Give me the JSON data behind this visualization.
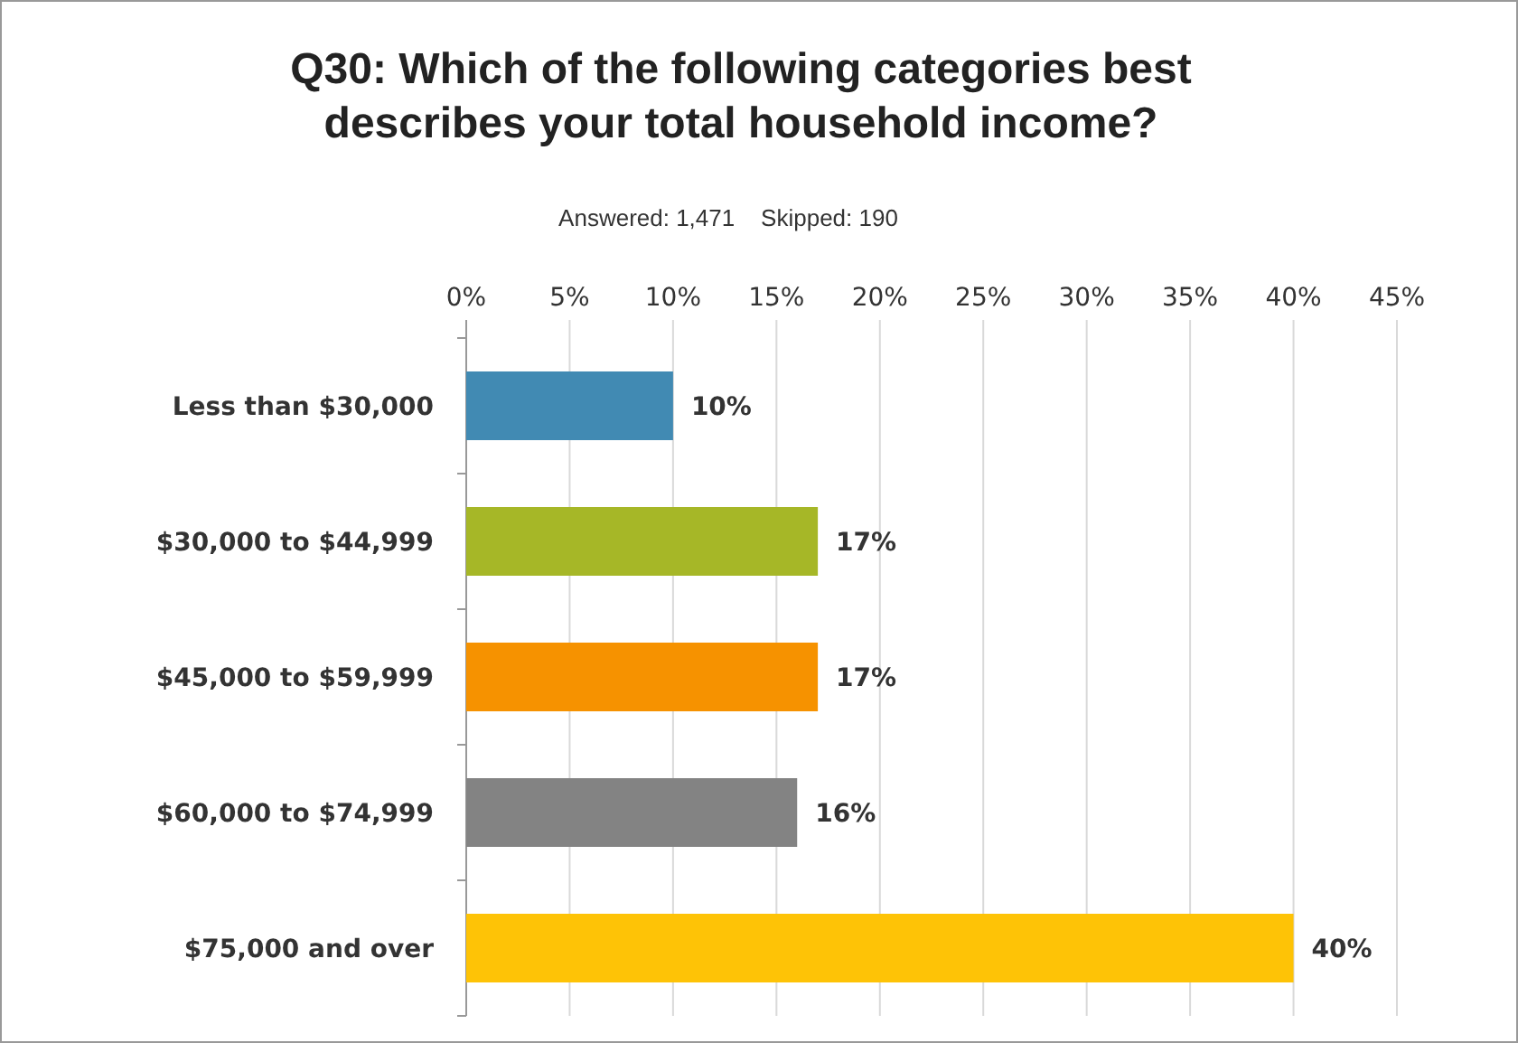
{
  "chart_data": {
    "type": "bar",
    "orientation": "horizontal",
    "title": "Q30: Which of the following categories best describes your total household income?",
    "subtitle": "Answered: 1,471    Skipped: 190",
    "categories": [
      "Less than $30,000",
      "$30,000 to $44,999",
      "$45,000 to $59,999",
      "$60,000 to $74,999",
      "$75,000 and over"
    ],
    "values": [
      10,
      17,
      17,
      16,
      40
    ],
    "colors": [
      "#418ab3",
      "#a6b727",
      "#f69200",
      "#838383",
      "#fec306"
    ],
    "xlim": [
      0,
      45
    ],
    "xticks": [
      {
        "value": 0,
        "label": "0%"
      },
      {
        "value": 5,
        "label": "5%"
      },
      {
        "value": 10,
        "label": "10%"
      },
      {
        "value": 15,
        "label": "15%"
      },
      {
        "value": 20,
        "label": "20%"
      },
      {
        "value": 25,
        "label": "25%"
      },
      {
        "value": 30,
        "label": "30%"
      },
      {
        "value": 35,
        "label": "35%"
      },
      {
        "value": 40,
        "label": "40%"
      },
      {
        "value": 45,
        "label": "45%"
      }
    ],
    "grid": "x",
    "value_labels": [
      "10%",
      "17%",
      "17%",
      "16%",
      "40%"
    ]
  }
}
